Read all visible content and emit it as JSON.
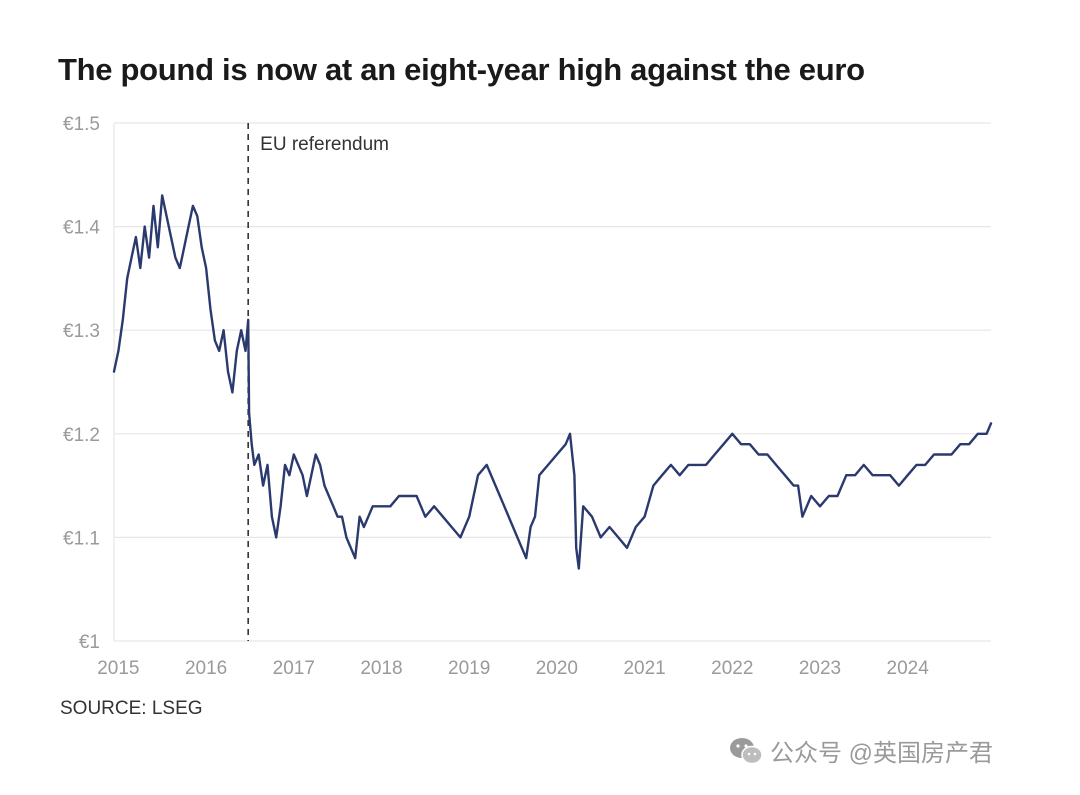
{
  "title": "The pound is now at an eight-year high against the euro",
  "source": "SOURCE: LSEG",
  "watermark": "公众号 @英国房产君",
  "colors": {
    "line": "#2b3a6e",
    "grid": "#e6e6e6",
    "axis_text": "#9a9a9a",
    "annotation": "#333333"
  },
  "chart_data": {
    "type": "line",
    "title": "The pound is now at an eight-year high against the euro",
    "xlabel": "",
    "ylabel": "",
    "ylim": [
      1.0,
      1.5
    ],
    "xlim": [
      2014.95,
      2024.95
    ],
    "grid": true,
    "y_ticks": [
      1.0,
      1.1,
      1.2,
      1.3,
      1.4,
      1.5
    ],
    "y_tick_labels": [
      "€1",
      "€1.1",
      "€1.2",
      "€1.3",
      "€1.4",
      "€1.5"
    ],
    "x_ticks": [
      2015,
      2016,
      2017,
      2018,
      2019,
      2020,
      2021,
      2022,
      2023,
      2024
    ],
    "x_tick_labels": [
      "2015",
      "2016",
      "2017",
      "2018",
      "2019",
      "2020",
      "2021",
      "2022",
      "2023",
      "2024"
    ],
    "annotations": [
      {
        "x": 2016.48,
        "label": "EU referendum",
        "style": "dashed-vertical"
      }
    ],
    "series": [
      {
        "name": "GBP/EUR",
        "x": [
          2014.95,
          2015.0,
          2015.05,
          2015.1,
          2015.15,
          2015.2,
          2015.25,
          2015.3,
          2015.35,
          2015.4,
          2015.45,
          2015.5,
          2015.55,
          2015.6,
          2015.65,
          2015.7,
          2015.75,
          2015.8,
          2015.85,
          2015.9,
          2015.95,
          2016.0,
          2016.05,
          2016.1,
          2016.15,
          2016.2,
          2016.25,
          2016.3,
          2016.35,
          2016.4,
          2016.45,
          2016.48,
          2016.49,
          2016.52,
          2016.55,
          2016.6,
          2016.65,
          2016.7,
          2016.75,
          2016.8,
          2016.85,
          2016.9,
          2016.95,
          2017.0,
          2017.05,
          2017.1,
          2017.15,
          2017.2,
          2017.25,
          2017.3,
          2017.35,
          2017.4,
          2017.45,
          2017.5,
          2017.55,
          2017.6,
          2017.65,
          2017.7,
          2017.75,
          2017.8,
          2017.85,
          2017.9,
          2017.95,
          2018.0,
          2018.1,
          2018.2,
          2018.3,
          2018.4,
          2018.5,
          2018.6,
          2018.7,
          2018.8,
          2018.9,
          2019.0,
          2019.1,
          2019.2,
          2019.3,
          2019.4,
          2019.5,
          2019.6,
          2019.65,
          2019.7,
          2019.75,
          2019.8,
          2019.9,
          2020.0,
          2020.1,
          2020.15,
          2020.2,
          2020.22,
          2020.25,
          2020.3,
          2020.4,
          2020.5,
          2020.6,
          2020.7,
          2020.8,
          2020.9,
          2021.0,
          2021.1,
          2021.2,
          2021.3,
          2021.4,
          2021.5,
          2021.6,
          2021.7,
          2021.8,
          2021.9,
          2022.0,
          2022.1,
          2022.2,
          2022.3,
          2022.4,
          2022.5,
          2022.6,
          2022.7,
          2022.75,
          2022.8,
          2022.9,
          2023.0,
          2023.1,
          2023.2,
          2023.3,
          2023.4,
          2023.5,
          2023.6,
          2023.7,
          2023.8,
          2023.9,
          2024.0,
          2024.1,
          2024.2,
          2024.3,
          2024.4,
          2024.5,
          2024.6,
          2024.7,
          2024.8,
          2024.9,
          2024.95
        ],
        "values": [
          1.26,
          1.28,
          1.31,
          1.35,
          1.37,
          1.39,
          1.36,
          1.4,
          1.37,
          1.42,
          1.38,
          1.43,
          1.41,
          1.39,
          1.37,
          1.36,
          1.38,
          1.4,
          1.42,
          1.41,
          1.38,
          1.36,
          1.32,
          1.29,
          1.28,
          1.3,
          1.26,
          1.24,
          1.28,
          1.3,
          1.28,
          1.31,
          1.22,
          1.19,
          1.17,
          1.18,
          1.15,
          1.17,
          1.12,
          1.1,
          1.13,
          1.17,
          1.16,
          1.18,
          1.17,
          1.16,
          1.14,
          1.16,
          1.18,
          1.17,
          1.15,
          1.14,
          1.13,
          1.12,
          1.12,
          1.1,
          1.09,
          1.08,
          1.12,
          1.11,
          1.12,
          1.13,
          1.13,
          1.13,
          1.13,
          1.14,
          1.14,
          1.14,
          1.12,
          1.13,
          1.12,
          1.11,
          1.1,
          1.12,
          1.16,
          1.17,
          1.15,
          1.13,
          1.11,
          1.09,
          1.08,
          1.11,
          1.12,
          1.16,
          1.17,
          1.18,
          1.19,
          1.2,
          1.16,
          1.09,
          1.07,
          1.13,
          1.12,
          1.1,
          1.11,
          1.1,
          1.09,
          1.11,
          1.12,
          1.15,
          1.16,
          1.17,
          1.16,
          1.17,
          1.17,
          1.17,
          1.18,
          1.19,
          1.2,
          1.19,
          1.19,
          1.18,
          1.18,
          1.17,
          1.16,
          1.15,
          1.15,
          1.12,
          1.14,
          1.13,
          1.14,
          1.14,
          1.16,
          1.16,
          1.17,
          1.16,
          1.16,
          1.16,
          1.15,
          1.16,
          1.17,
          1.17,
          1.18,
          1.18,
          1.18,
          1.19,
          1.19,
          1.2,
          1.2,
          1.21
        ]
      }
    ]
  }
}
